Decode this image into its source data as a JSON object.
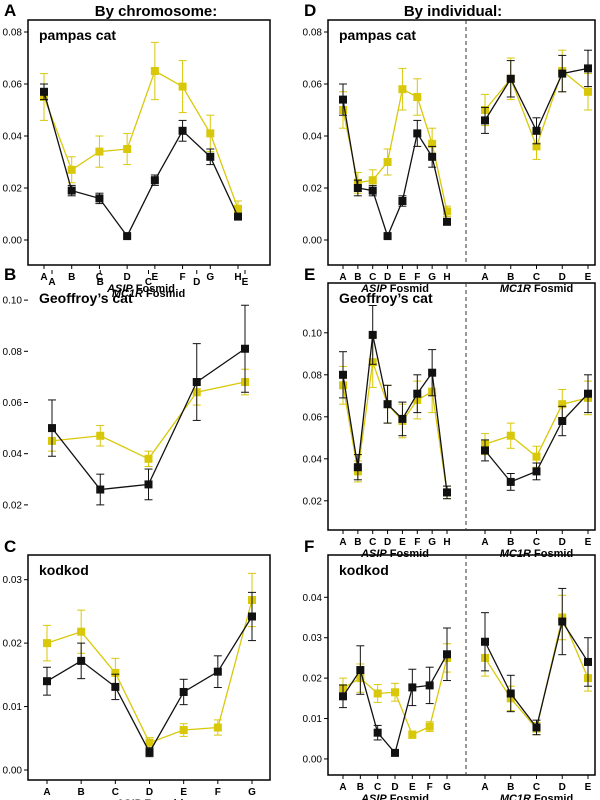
{
  "headers": {
    "left": "By chromosome:",
    "right": "By individual:"
  },
  "series_colors": {
    "black": "#111111",
    "yellow": "#d9c80a"
  },
  "chart_data": [
    {
      "id": "A",
      "panel_label": "A",
      "type": "line",
      "title": "pampas cat",
      "xlabel_gene": "ASIP",
      "xlabel_suffix": " Fosmid",
      "ylim": [
        0,
        0.08
      ],
      "yticks": [
        "0.00",
        "0.02",
        "0.04",
        "0.06",
        "0.08"
      ],
      "groups": [
        {
          "categories": [
            "A",
            "B",
            "C",
            "D",
            "E",
            "F",
            "G",
            "H"
          ],
          "series": [
            {
              "color": "black",
              "values": [
                0.057,
                0.019,
                0.016,
                0.0015,
                0.023,
                0.042,
                0.032,
                0.009
              ],
              "err": [
                0.003,
                0.002,
                0.002,
                0.0005,
                0.002,
                0.004,
                0.003,
                0.001
              ]
            },
            {
              "color": "yellow",
              "values": [
                0.055,
                0.027,
                0.034,
                0.035,
                0.065,
                0.059,
                0.041,
                0.012
              ],
              "err": [
                0.009,
                0.005,
                0.006,
                0.006,
                0.011,
                0.01,
                0.007,
                0.003
              ]
            }
          ]
        }
      ]
    },
    {
      "id": "B",
      "panel_label": "B",
      "type": "line",
      "title": "Geoffroy’s cat",
      "xlabel_gene": "MC1R",
      "xlabel_suffix": " Fosmid",
      "ylim": [
        0.018,
        0.102
      ],
      "yticks": [
        "0.02",
        "0.04",
        "0.06",
        "0.08",
        "0.10"
      ],
      "groups": [
        {
          "categories": [
            "A",
            "B",
            "C",
            "D",
            "E"
          ],
          "series": [
            {
              "color": "black",
              "values": [
                0.05,
                0.026,
                0.028,
                0.068,
                0.081
              ],
              "err": [
                0.011,
                0.006,
                0.006,
                0.015,
                0.017
              ]
            },
            {
              "color": "yellow",
              "values": [
                0.045,
                0.047,
                0.038,
                0.064,
                0.068
              ],
              "err": [
                0.004,
                0.004,
                0.003,
                0.005,
                0.005
              ]
            }
          ]
        }
      ]
    },
    {
      "id": "C",
      "panel_label": "C",
      "type": "line",
      "title": "kodkod",
      "xlabel_gene": "ASIP",
      "xlabel_suffix": " Fosmid",
      "ylim": [
        0,
        0.032
      ],
      "yticks": [
        "0.00",
        "0.01",
        "0.02",
        "0.03"
      ],
      "groups": [
        {
          "categories": [
            "A",
            "B",
            "C",
            "D",
            "E",
            "F",
            "G"
          ],
          "series": [
            {
              "color": "black",
              "values": [
                0.014,
                0.0172,
                0.0131,
                0.0028,
                0.0123,
                0.0155,
                0.0242
              ],
              "err": [
                0.0022,
                0.0028,
                0.002,
                0.0007,
                0.002,
                0.0025,
                0.0038
              ]
            },
            {
              "color": "yellow",
              "values": [
                0.02,
                0.0218,
                0.0153,
                0.0043,
                0.0063,
                0.0067,
                0.0268
              ],
              "err": [
                0.0028,
                0.0034,
                0.0023,
                0.0008,
                0.001,
                0.0012,
                0.0042
              ]
            }
          ]
        }
      ]
    },
    {
      "id": "D",
      "panel_label": "D",
      "type": "line",
      "title": "pampas cat",
      "ylim": [
        0,
        0.08
      ],
      "yticks": [
        "0.00",
        "0.02",
        "0.04",
        "0.06",
        "0.08"
      ],
      "groups": [
        {
          "xlabel_gene": "ASIP",
          "xlabel_suffix": " Fosmid",
          "categories": [
            "A",
            "B",
            "C",
            "D",
            "E",
            "F",
            "G",
            "H"
          ],
          "series": [
            {
              "color": "black",
              "values": [
                0.054,
                0.02,
                0.019,
                0.0015,
                0.015,
                0.041,
                0.032,
                0.007
              ],
              "err": [
                0.006,
                0.003,
                0.002,
                0.0005,
                0.002,
                0.005,
                0.004,
                0.001
              ]
            },
            {
              "color": "yellow",
              "values": [
                0.05,
                0.022,
                0.023,
                0.03,
                0.058,
                0.055,
                0.037,
                0.011
              ],
              "err": [
                0.007,
                0.004,
                0.004,
                0.005,
                0.008,
                0.007,
                0.006,
                0.002
              ]
            }
          ]
        },
        {
          "xlabel_gene": "MC1R",
          "xlabel_suffix": " Fosmid",
          "categories": [
            "A",
            "B",
            "C",
            "D",
            "E"
          ],
          "series": [
            {
              "color": "black",
              "values": [
                0.046,
                0.062,
                0.042,
                0.064,
                0.066
              ],
              "err": [
                0.005,
                0.007,
                0.005,
                0.007,
                0.007
              ]
            },
            {
              "color": "yellow",
              "values": [
                0.05,
                0.062,
                0.036,
                0.065,
                0.057
              ],
              "err": [
                0.006,
                0.008,
                0.005,
                0.008,
                0.007
              ]
            }
          ]
        }
      ]
    },
    {
      "id": "E",
      "panel_label": "E",
      "type": "line",
      "title": "Geoffroy’s cat",
      "ylim": [
        0.018,
        0.118
      ],
      "yticks": [
        "0.02",
        "0.04",
        "0.06",
        "0.08",
        "0.10"
      ],
      "groups": [
        {
          "xlabel_gene": "ASIP",
          "xlabel_suffix": " Fosmid",
          "categories": [
            "A",
            "B",
            "C",
            "D",
            "E",
            "F",
            "G",
            "H"
          ],
          "series": [
            {
              "color": "black",
              "values": [
                0.08,
                0.036,
                0.099,
                0.066,
                0.059,
                0.071,
                0.081,
                0.024
              ],
              "err": [
                0.011,
                0.006,
                0.014,
                0.009,
                0.008,
                0.009,
                0.011,
                0.003
              ]
            },
            {
              "color": "yellow",
              "values": [
                0.075,
                0.034,
                0.086,
                0.066,
                0.058,
                0.068,
                0.072,
                0.024
              ],
              "err": [
                0.009,
                0.005,
                0.012,
                0.009,
                0.008,
                0.009,
                0.01,
                0.003
              ]
            }
          ]
        },
        {
          "xlabel_gene": "MC1R",
          "xlabel_suffix": " Fosmid",
          "categories": [
            "A",
            "B",
            "C",
            "D",
            "E"
          ],
          "series": [
            {
              "color": "black",
              "values": [
                0.044,
                0.029,
                0.034,
                0.058,
                0.071
              ],
              "err": [
                0.005,
                0.004,
                0.004,
                0.007,
                0.009
              ]
            },
            {
              "color": "yellow",
              "values": [
                0.047,
                0.051,
                0.041,
                0.066,
                0.069
              ],
              "err": [
                0.005,
                0.006,
                0.005,
                0.007,
                0.008
              ]
            }
          ]
        }
      ]
    },
    {
      "id": "F",
      "panel_label": "F",
      "type": "line",
      "title": "kodkod",
      "ylim": [
        -0.0015,
        0.0475
      ],
      "yticks": [
        "0.00",
        "0.01",
        "0.02",
        "0.03",
        "0.04"
      ],
      "groups": [
        {
          "xlabel_gene": "ASIP",
          "xlabel_suffix": " Fosmid",
          "categories": [
            "A",
            "B",
            "C",
            "D",
            "E",
            "F",
            "G"
          ],
          "series": [
            {
              "color": "black",
              "values": [
                0.0155,
                0.022,
                0.0065,
                0.0015,
                0.0177,
                0.0182,
                0.0259
              ],
              "err": [
                0.0028,
                0.006,
                0.0018,
                0.0005,
                0.0045,
                0.0045,
                0.0065
              ]
            },
            {
              "color": "yellow",
              "values": [
                0.0175,
                0.02,
                0.0162,
                0.0165,
                0.006,
                0.008,
                0.025
              ],
              "err": [
                0.0025,
                0.0035,
                0.0022,
                0.0022,
                0.0009,
                0.0012,
                0.0035
              ]
            }
          ]
        },
        {
          "xlabel_gene": "MC1R",
          "xlabel_suffix": " Fosmid",
          "categories": [
            "A",
            "B",
            "C",
            "D",
            "E"
          ],
          "series": [
            {
              "color": "black",
              "values": [
                0.029,
                0.0162,
                0.0078,
                0.034,
                0.024
              ],
              "err": [
                0.0072,
                0.0045,
                0.0018,
                0.0082,
                0.006
              ]
            },
            {
              "color": "yellow",
              "values": [
                0.025,
                0.015,
                0.0075,
                0.035,
                0.02
              ],
              "err": [
                0.0045,
                0.003,
                0.0015,
                0.0055,
                0.0032
              ]
            }
          ]
        }
      ]
    }
  ]
}
